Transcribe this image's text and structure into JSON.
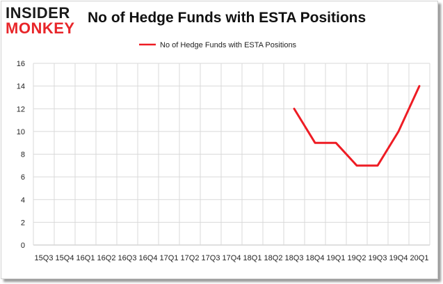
{
  "logo": {
    "line1": "INSIDER",
    "line2": "MONKEY"
  },
  "colors": {
    "series": "#ee1c24",
    "grid": "#d9d9d9",
    "axis": "#bfbfbf",
    "text": "#222222"
  },
  "chart_data": {
    "type": "line",
    "title": "No of Hedge Funds with ESTA Positions",
    "xlabel": "",
    "ylabel": "",
    "ylim": [
      0,
      16
    ],
    "yticks": [
      0,
      2,
      4,
      6,
      8,
      10,
      12,
      14,
      16
    ],
    "grid": true,
    "legend": "top-center",
    "categories": [
      "15Q3",
      "15Q4",
      "16Q1",
      "16Q2",
      "16Q3",
      "16Q4",
      "17Q1",
      "17Q2",
      "17Q3",
      "17Q4",
      "18Q1",
      "18Q2",
      "18Q3",
      "18Q4",
      "19Q1",
      "19Q2",
      "19Q3",
      "19Q4",
      "20Q1"
    ],
    "series": [
      {
        "name": "No of Hedge Funds with ESTA Positions",
        "values": [
          null,
          null,
          null,
          null,
          null,
          null,
          null,
          null,
          null,
          null,
          null,
          null,
          12,
          9,
          9,
          7,
          7,
          10,
          14
        ]
      }
    ]
  }
}
